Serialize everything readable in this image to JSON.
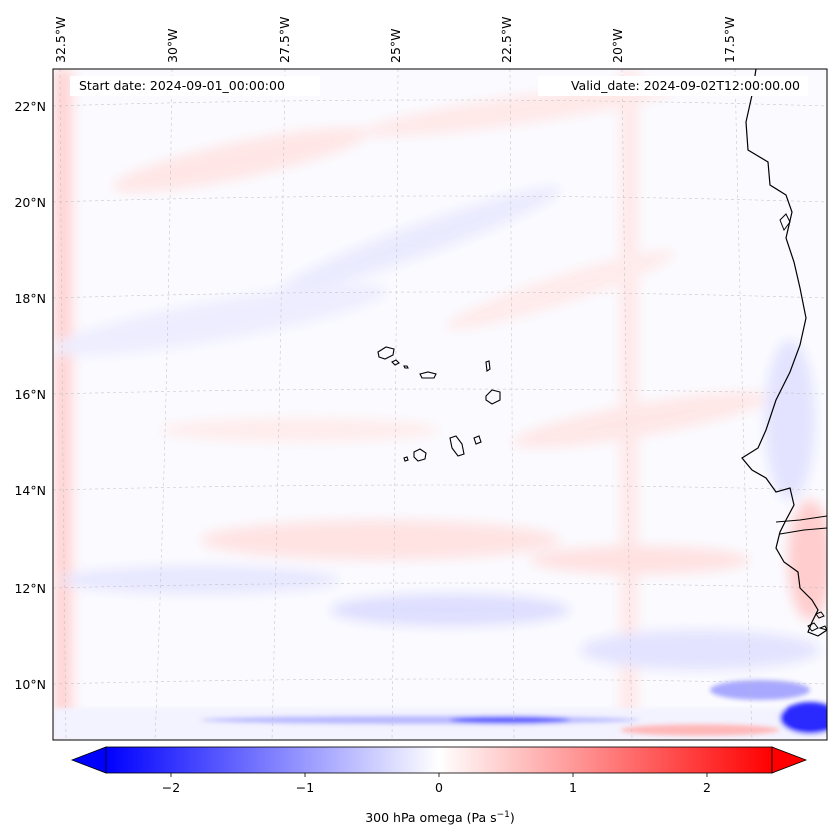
{
  "map": {
    "start_label": "Start date: 2024-09-01_00:00:00",
    "valid_label": "Valid_date: 2024-09-02T12:00:00.00",
    "lon_labels": [
      "32.5°W",
      "30°W",
      "27.5°W",
      "25°W",
      "22.5°W",
      "20°W",
      "17.5°W"
    ],
    "lat_labels": [
      "22°N",
      "20°N",
      "18°N",
      "16°N",
      "14°N",
      "12°N",
      "10°N"
    ]
  },
  "colorbar": {
    "ticks": [
      "−2",
      "−1",
      "0",
      "1",
      "2"
    ],
    "label_main": "300 hPa omega (Pa s",
    "label_sup": "−1",
    "label_end": ")",
    "min_color": "#0000ff",
    "mid_color": "#ffffff",
    "max_color": "#ff0000"
  }
}
